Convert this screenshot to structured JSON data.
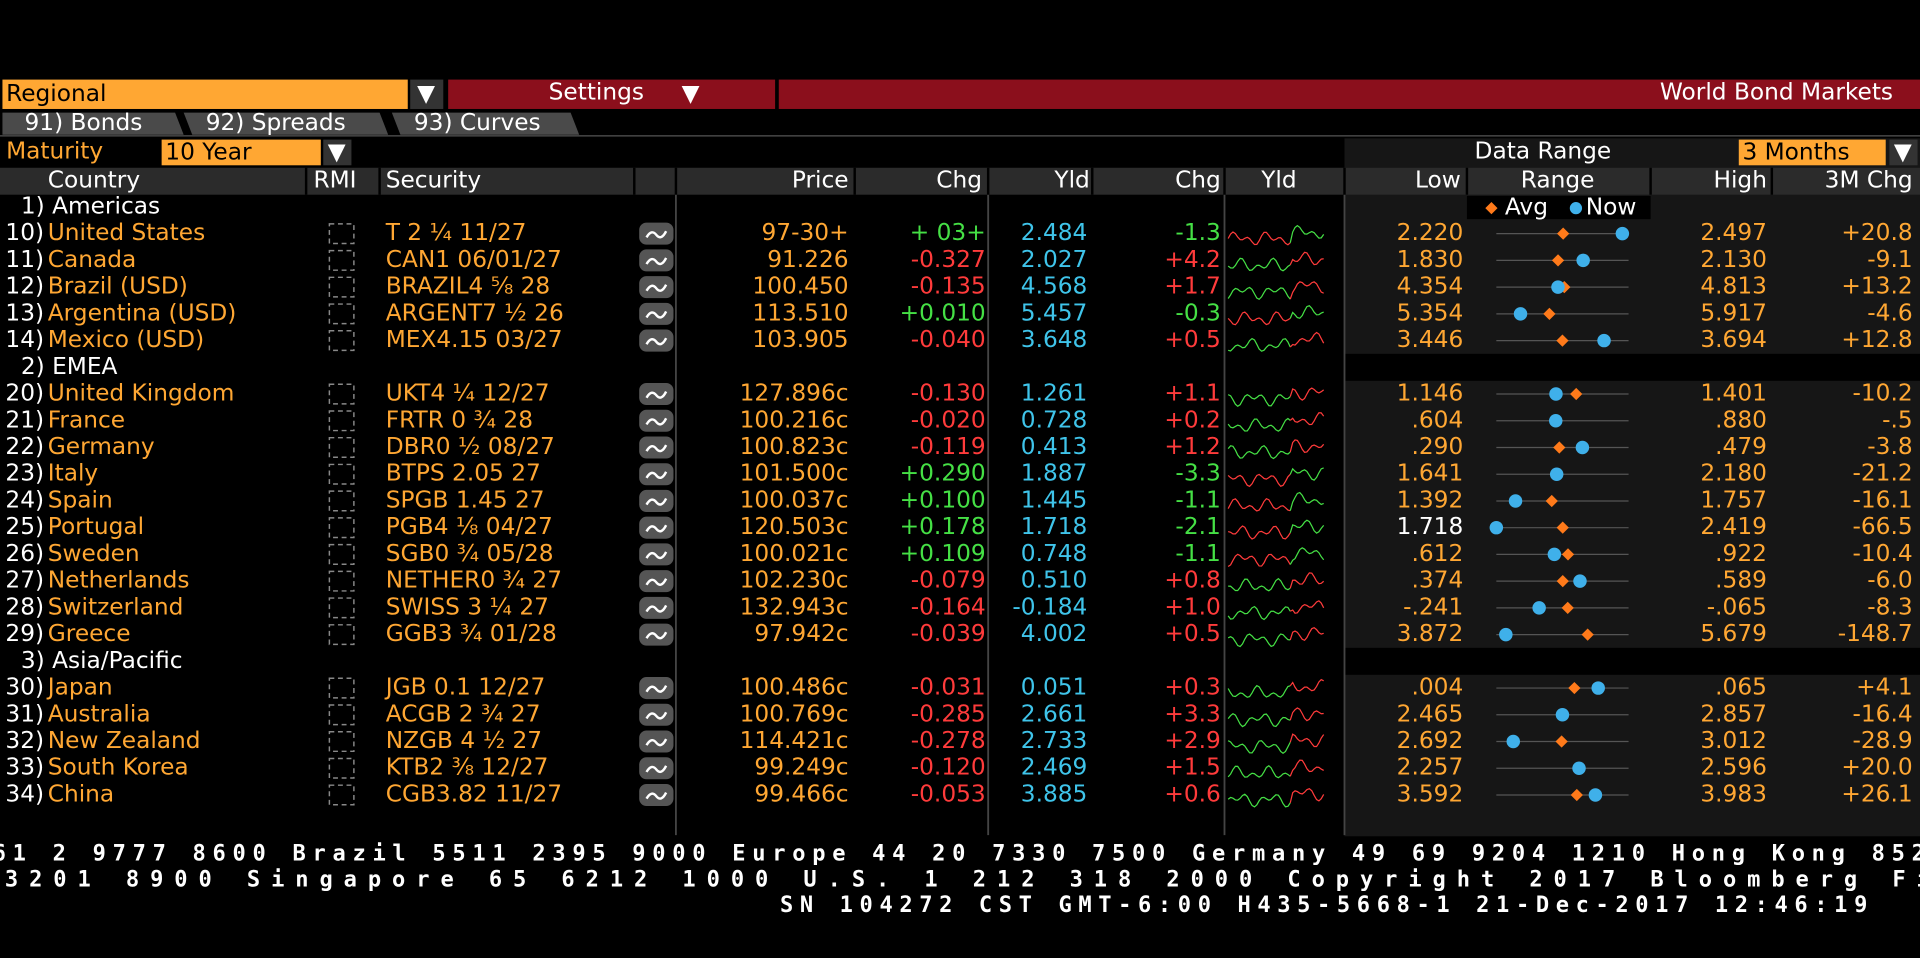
{
  "header": {
    "regional": "Regional",
    "settings": "Settings",
    "title": "World Bond Markets",
    "tabs": [
      "91) Bonds",
      "92) Spreads",
      "93) Curves"
    ],
    "maturity_label": "Maturity",
    "maturity": "10 Year",
    "data_range_label": "Data Range",
    "data_range": "3 Months"
  },
  "table": {
    "columns": [
      "Country",
      "RMI",
      "Security",
      "Price",
      "Chg",
      "Yld",
      "Chg",
      "Yld",
      "Low",
      "Range",
      "High",
      "3M Chg"
    ],
    "legend": [
      "Avg",
      "Now"
    ],
    "groups": [
      {
        "label": "1) Americas",
        "rows": [
          {
            "num": "10)",
            "country": "United States",
            "security": "T 2 ¼ 11/27",
            "price": "97-30+",
            "chg": "+ 03+",
            "yld": "2.484",
            "yld_chg": "-1.3",
            "low": "2.220",
            "avg": 2.36,
            "high": "2.497",
            "chg_3m": "+20.8"
          },
          {
            "num": "11)",
            "country": "Canada",
            "security": "CAN1 06/01/27",
            "price": "91.226",
            "chg": "-0.327",
            "yld": "2.027",
            "yld_chg": "+4.2",
            "low": "1.830",
            "avg": 1.97,
            "high": "2.130",
            "chg_3m": "-9.1"
          },
          {
            "num": "12)",
            "country": "Brazil (USD)",
            "security": "BRAZIL4 ⅝ 28",
            "price": "100.450",
            "chg": "-0.135",
            "yld": "4.568",
            "yld_chg": "+1.7",
            "low": "4.354",
            "avg": 4.59,
            "high": "4.813",
            "chg_3m": "+13.2"
          },
          {
            "num": "13)",
            "country": "Argentina (USD)",
            "security": "ARGENT7 ½ 26",
            "price": "113.510",
            "chg": "+0.010",
            "yld": "5.457",
            "yld_chg": "-0.3",
            "low": "5.354",
            "avg": 5.58,
            "high": "5.917",
            "chg_3m": "-4.6"
          },
          {
            "num": "14)",
            "country": "Mexico (USD)",
            "security": "MEX4.15 03/27",
            "price": "103.905",
            "chg": "-0.040",
            "yld": "3.648",
            "yld_chg": "+0.5",
            "low": "3.446",
            "avg": 3.57,
            "high": "3.694",
            "chg_3m": "+12.8"
          }
        ]
      },
      {
        "label": "2) EMEA",
        "rows": [
          {
            "num": "20)",
            "country": "United Kingdom",
            "security": "UKT4 ¼ 12/27",
            "price": "127.896c",
            "chg": "-0.130",
            "yld": "1.261",
            "yld_chg": "+1.1",
            "low": "1.146",
            "avg": 1.3,
            "high": "1.401",
            "chg_3m": "-10.2"
          },
          {
            "num": "21)",
            "country": "France",
            "security": "FRTR 0 ¾ 28",
            "price": "100.216c",
            "chg": "-0.020",
            "yld": "0.728",
            "yld_chg": "+0.2",
            "low": ".604",
            "avg": 0.73,
            "high": ".880",
            "chg_3m": "-.5"
          },
          {
            "num": "22)",
            "country": "Germany",
            "security": "DBR0 ½ 08/27",
            "price": "100.823c",
            "chg": "-0.119",
            "yld": "0.413",
            "yld_chg": "+1.2",
            "low": ".290",
            "avg": 0.38,
            "high": ".479",
            "chg_3m": "-3.8"
          },
          {
            "num": "23)",
            "country": "Italy",
            "security": "BTPS 2.05 27",
            "price": "101.500c",
            "chg": "+0.290",
            "yld": "1.887",
            "yld_chg": "-3.3",
            "low": "1.641",
            "avg": 1.89,
            "high": "2.180",
            "chg_3m": "-21.2"
          },
          {
            "num": "24)",
            "country": "Spain",
            "security": "SPGB 1.45 27",
            "price": "100.037c",
            "chg": "+0.100",
            "yld": "1.445",
            "yld_chg": "-1.1",
            "low": "1.392",
            "avg": 1.545,
            "high": "1.757",
            "chg_3m": "-16.1"
          },
          {
            "num": "25)",
            "country": "Portugal",
            "security": "PGB4 ⅛ 04/27",
            "price": "120.503c",
            "chg": "+0.178",
            "yld": "1.718",
            "yld_chg": "-2.1",
            "low": "1.718",
            "low_highlight": true,
            "avg": 2.07,
            "high": "2.419",
            "chg_3m": "-66.5"
          },
          {
            "num": "26)",
            "country": "Sweden",
            "security": "SGB0 ¾ 05/28",
            "price": "100.021c",
            "chg": "+0.109",
            "yld": "0.748",
            "yld_chg": "-1.1",
            "low": ".612",
            "avg": 0.78,
            "high": ".922",
            "chg_3m": "-10.4"
          },
          {
            "num": "27)",
            "country": "Netherlands",
            "security": "NETHER0 ¾ 27",
            "price": "102.230c",
            "chg": "-0.079",
            "yld": "0.510",
            "yld_chg": "+0.8",
            "low": ".374",
            "avg": 0.482,
            "high": ".589",
            "chg_3m": "-6.0"
          },
          {
            "num": "28)",
            "country": "Switzerland",
            "security": "SWISS 3 ¼ 27",
            "price": "132.943c",
            "chg": "-0.164",
            "yld": "-0.184",
            "yld_chg": "+1.0",
            "low": "-.241",
            "avg": -0.146,
            "high": "-.065",
            "chg_3m": "-8.3"
          },
          {
            "num": "29)",
            "country": "Greece",
            "security": "GGB3 ¾ 01/28",
            "price": "97.942c",
            "chg": "-0.039",
            "yld": "4.002",
            "yld_chg": "+0.5",
            "low": "3.872",
            "avg": 5.12,
            "high": "5.679",
            "chg_3m": "-148.7"
          }
        ]
      },
      {
        "label": "3) Asia/Pacific",
        "rows": [
          {
            "num": "30)",
            "country": "Japan",
            "security": "JGB 0.1 12/27",
            "price": "100.486c",
            "chg": "-0.031",
            "yld": "0.051",
            "yld_chg": "+0.3",
            "low": ".004",
            "avg": 0.04,
            "high": ".065",
            "chg_3m": "+4.1"
          },
          {
            "num": "31)",
            "country": "Australia",
            "security": "ACGB 2 ¾ 27",
            "price": "100.769c",
            "chg": "-0.285",
            "yld": "2.661",
            "yld_chg": "+3.3",
            "low": "2.465",
            "avg": 2.66,
            "high": "2.857",
            "chg_3m": "-16.4"
          },
          {
            "num": "32)",
            "country": "New Zealand",
            "security": "NZGB 4 ½ 27",
            "price": "114.421c",
            "chg": "-0.278",
            "yld": "2.733",
            "yld_chg": "+2.9",
            "low": "2.692",
            "avg": 2.85,
            "high": "3.012",
            "chg_3m": "-28.9"
          },
          {
            "num": "33)",
            "country": "South Korea",
            "security": "KTB2 ⅜ 12/27",
            "price": "99.249c",
            "chg": "-0.120",
            "yld": "2.469",
            "yld_chg": "+1.5",
            "low": "2.257",
            "avg": 2.47,
            "high": "2.596",
            "chg_3m": "+20.0"
          },
          {
            "num": "34)",
            "country": "China",
            "security": "CGB3.82 11/27",
            "price": "99.466c",
            "chg": "-0.053",
            "yld": "3.885",
            "yld_chg": "+0.6",
            "low": "3.592",
            "avg": 3.83,
            "high": "3.983",
            "chg_3m": "+26.1"
          }
        ]
      }
    ]
  },
  "footer": [
    "61 2 9777 8600 Brazil 5511 2395 9000 Europe 44 20 7330 7500 Germany 49 69 9204 1210 Hong Kong 852",
    "3201 8900      Singapore 65 6212 1000      U.S. 1 212 318 2000        Copyright 2017 Bloomberg Fi",
    "SN 104272 CST  GMT-6:00 H435-5668-1 21-Dec-2017 12:46:19"
  ]
}
